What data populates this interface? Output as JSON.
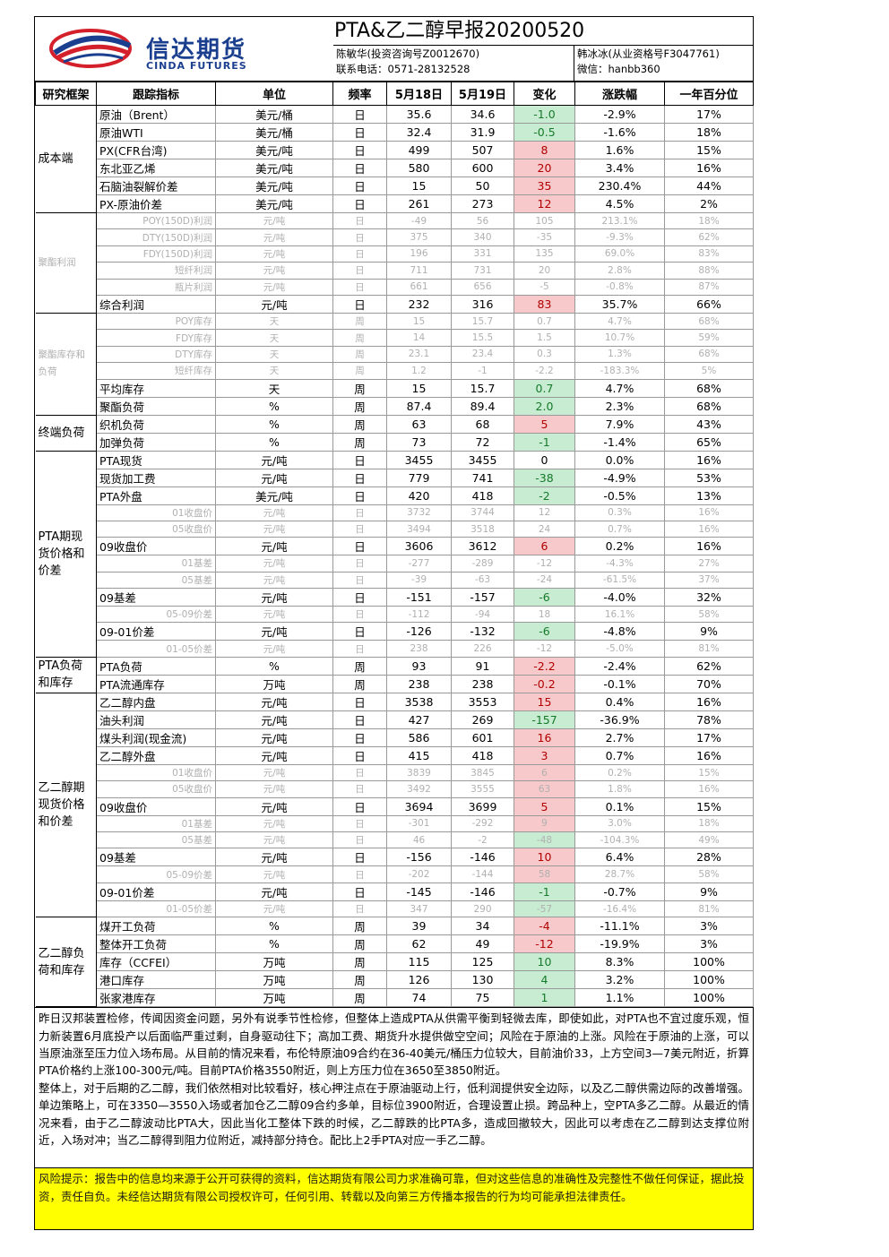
{
  "header": {
    "logo_cn": "信达期货",
    "logo_en": "CINDA FUTURES",
    "title": "PTA&乙二醇早报20200520",
    "analyst1": "陈敏华(投资咨询号Z0012670)",
    "contact": "联系电话：0571-28132528",
    "analyst2": "韩冰冰(从业资格号F3047761)",
    "wechat": "微信：hanbb360"
  },
  "columns": [
    "研究框架",
    "跟踪指标",
    "单位",
    "频率",
    "5月18日",
    "5月19日",
    "变化",
    "涨跌幅",
    "一年百分位"
  ],
  "groups": [
    {
      "label": "成本端",
      "rows": [
        {
          "name": "原油（Brent）",
          "unit": "美元/桶",
          "freq": "日",
          "v1": "35.6",
          "v2": "34.6",
          "chg": "-1.0",
          "dir": "dn",
          "pct": "-2.9%",
          "pctl": "17%",
          "dim": false
        },
        {
          "name": "原油WTI",
          "unit": "美元/桶",
          "freq": "日",
          "v1": "32.4",
          "v2": "31.9",
          "chg": "-0.5",
          "dir": "dn",
          "pct": "-1.6%",
          "pctl": "18%",
          "dim": false
        },
        {
          "name": "PX(CFR台湾)",
          "unit": "美元/吨",
          "freq": "日",
          "v1": "499",
          "v2": "507",
          "chg": "8",
          "dir": "up",
          "pct": "1.6%",
          "pctl": "15%",
          "dim": false
        },
        {
          "name": "东北亚乙烯",
          "unit": "美元/吨",
          "freq": "日",
          "v1": "580",
          "v2": "600",
          "chg": "20",
          "dir": "up",
          "pct": "3.4%",
          "pctl": "16%",
          "dim": false
        },
        {
          "name": "石脑油裂解价差",
          "unit": "美元/吨",
          "freq": "日",
          "v1": "15",
          "v2": "50",
          "chg": "35",
          "dir": "up",
          "pct": "230.4%",
          "pctl": "44%",
          "dim": false
        },
        {
          "name": "PX-原油价差",
          "unit": "美元/吨",
          "freq": "日",
          "v1": "261",
          "v2": "273",
          "chg": "12",
          "dir": "up",
          "pct": "4.5%",
          "pctl": "2%",
          "dim": false
        }
      ]
    },
    {
      "label": "聚酯利润",
      "rows": [
        {
          "name": "POY(150D)利润",
          "unit": "元/吨",
          "freq": "日",
          "v1": "-49",
          "v2": "56",
          "chg": "105",
          "dir": "nc",
          "pct": "213.1%",
          "pctl": "18%",
          "dim": true
        },
        {
          "name": "DTY(150D)利润",
          "unit": "元/吨",
          "freq": "日",
          "v1": "375",
          "v2": "340",
          "chg": "-35",
          "dir": "nc",
          "pct": "-9.3%",
          "pctl": "62%",
          "dim": true
        },
        {
          "name": "FDY(150D)利润",
          "unit": "元/吨",
          "freq": "日",
          "v1": "196",
          "v2": "331",
          "chg": "135",
          "dir": "nc",
          "pct": "69.0%",
          "pctl": "83%",
          "dim": true
        },
        {
          "name": "短纤利润",
          "unit": "元/吨",
          "freq": "日",
          "v1": "711",
          "v2": "731",
          "chg": "20",
          "dir": "nc",
          "pct": "2.8%",
          "pctl": "88%",
          "dim": true
        },
        {
          "name": "瓶片利润",
          "unit": "元/吨",
          "freq": "日",
          "v1": "661",
          "v2": "656",
          "chg": "-5",
          "dir": "nc",
          "pct": "-0.8%",
          "pctl": "87%",
          "dim": true
        },
        {
          "name": "综合利润",
          "unit": "元/吨",
          "freq": "日",
          "v1": "232",
          "v2": "316",
          "chg": "83",
          "dir": "up",
          "pct": "35.7%",
          "pctl": "66%",
          "dim": false
        }
      ]
    },
    {
      "label": "聚酯库存和负荷",
      "rows": [
        {
          "name": "POY库存",
          "unit": "天",
          "freq": "周",
          "v1": "15",
          "v2": "15.7",
          "chg": "0.7",
          "dir": "nc",
          "pct": "4.7%",
          "pctl": "68%",
          "dim": true
        },
        {
          "name": "FDY库存",
          "unit": "天",
          "freq": "周",
          "v1": "14",
          "v2": "15.5",
          "chg": "1.5",
          "dir": "nc",
          "pct": "10.7%",
          "pctl": "59%",
          "dim": true
        },
        {
          "name": "DTY库存",
          "unit": "天",
          "freq": "周",
          "v1": "23.1",
          "v2": "23.4",
          "chg": "0.3",
          "dir": "nc",
          "pct": "1.3%",
          "pctl": "68%",
          "dim": true
        },
        {
          "name": "短纤库存",
          "unit": "天",
          "freq": "周",
          "v1": "1.2",
          "v2": "-1",
          "chg": "-2.2",
          "dir": "nc",
          "pct": "-183.3%",
          "pctl": "5%",
          "dim": true
        },
        {
          "name": "平均库存",
          "unit": "天",
          "freq": "周",
          "v1": "15",
          "v2": "15.7",
          "chg": "0.7",
          "dir": "dn",
          "pct": "4.7%",
          "pctl": "68%",
          "dim": false
        },
        {
          "name": "聚酯负荷",
          "unit": "%",
          "freq": "周",
          "v1": "87.4",
          "v2": "89.4",
          "chg": "2.0",
          "dir": "dn",
          "pct": "2.3%",
          "pctl": "68%",
          "dim": false
        }
      ]
    },
    {
      "label": "终端负荷",
      "rows": [
        {
          "name": "织机负荷",
          "unit": "%",
          "freq": "周",
          "v1": "63",
          "v2": "68",
          "chg": "5",
          "dir": "up",
          "pct": "7.9%",
          "pctl": "43%",
          "dim": false
        },
        {
          "name": "加弹负荷",
          "unit": "%",
          "freq": "周",
          "v1": "73",
          "v2": "72",
          "chg": "-1",
          "dir": "dn",
          "pct": "-1.4%",
          "pctl": "65%",
          "dim": false
        }
      ]
    },
    {
      "label": "PTA期现货价格和价差",
      "rows": [
        {
          "name": "PTA现货",
          "unit": "元/吨",
          "freq": "日",
          "v1": "3455",
          "v2": "3455",
          "chg": "0",
          "dir": "nc",
          "pct": "0.0%",
          "pctl": "16%",
          "dim": false
        },
        {
          "name": "现货加工费",
          "unit": "元/吨",
          "freq": "日",
          "v1": "779",
          "v2": "741",
          "chg": "-38",
          "dir": "dn",
          "pct": "-4.9%",
          "pctl": "53%",
          "dim": false
        },
        {
          "name": "PTA外盘",
          "unit": "美元/吨",
          "freq": "日",
          "v1": "420",
          "v2": "418",
          "chg": "-2",
          "dir": "dn",
          "pct": "-0.5%",
          "pctl": "13%",
          "dim": false
        },
        {
          "name": "01收盘价",
          "unit": "元/吨",
          "freq": "日",
          "v1": "3732",
          "v2": "3744",
          "chg": "12",
          "dir": "nc",
          "pct": "0.3%",
          "pctl": "16%",
          "dim": true
        },
        {
          "name": "05收盘价",
          "unit": "元/吨",
          "freq": "日",
          "v1": "3494",
          "v2": "3518",
          "chg": "24",
          "dir": "nc",
          "pct": "0.7%",
          "pctl": "16%",
          "dim": true
        },
        {
          "name": "09收盘价",
          "unit": "元/吨",
          "freq": "日",
          "v1": "3606",
          "v2": "3612",
          "chg": "6",
          "dir": "up",
          "pct": "0.2%",
          "pctl": "16%",
          "dim": false
        },
        {
          "name": "01基差",
          "unit": "元/吨",
          "freq": "日",
          "v1": "-277",
          "v2": "-289",
          "chg": "-12",
          "dir": "nc",
          "pct": "-4.3%",
          "pctl": "27%",
          "dim": true
        },
        {
          "name": "05基差",
          "unit": "元/吨",
          "freq": "日",
          "v1": "-39",
          "v2": "-63",
          "chg": "-24",
          "dir": "nc",
          "pct": "-61.5%",
          "pctl": "37%",
          "dim": true
        },
        {
          "name": "09基差",
          "unit": "元/吨",
          "freq": "日",
          "v1": "-151",
          "v2": "-157",
          "chg": "-6",
          "dir": "dn",
          "pct": "-4.0%",
          "pctl": "32%",
          "dim": false
        },
        {
          "name": "05-09价差",
          "unit": "元/吨",
          "freq": "日",
          "v1": "-112",
          "v2": "-94",
          "chg": "18",
          "dir": "nc",
          "pct": "16.1%",
          "pctl": "58%",
          "dim": true
        },
        {
          "name": "09-01价差",
          "unit": "元/吨",
          "freq": "日",
          "v1": "-126",
          "v2": "-132",
          "chg": "-6",
          "dir": "dn",
          "pct": "-4.8%",
          "pctl": "9%",
          "dim": false
        },
        {
          "name": "01-05价差",
          "unit": "元/吨",
          "freq": "日",
          "v1": "238",
          "v2": "226",
          "chg": "-12",
          "dir": "nc",
          "pct": "-5.0%",
          "pctl": "81%",
          "dim": true
        }
      ]
    },
    {
      "label": "PTA负荷和库存",
      "rows": [
        {
          "name": "PTA负荷",
          "unit": "%",
          "freq": "周",
          "v1": "93",
          "v2": "91",
          "chg": "-2.2",
          "dir": "up",
          "pct": "-2.4%",
          "pctl": "62%",
          "dim": false
        },
        {
          "name": "PTA流通库存",
          "unit": "万吨",
          "freq": "周",
          "v1": "238",
          "v2": "238",
          "chg": "-0.2",
          "dir": "up",
          "pct": "-0.1%",
          "pctl": "70%",
          "dim": false
        }
      ]
    },
    {
      "label": "乙二醇期现货价格和价差",
      "rows": [
        {
          "name": "乙二醇内盘",
          "unit": "元/吨",
          "freq": "日",
          "v1": "3538",
          "v2": "3553",
          "chg": "15",
          "dir": "up",
          "pct": "0.4%",
          "pctl": "16%",
          "dim": false
        },
        {
          "name": "油头利润",
          "unit": "元/吨",
          "freq": "日",
          "v1": "427",
          "v2": "269",
          "chg": "-157",
          "dir": "dn",
          "pct": "-36.9%",
          "pctl": "78%",
          "dim": false
        },
        {
          "name": "煤头利润(现金流)",
          "unit": "元/吨",
          "freq": "日",
          "v1": "586",
          "v2": "601",
          "chg": "16",
          "dir": "up",
          "pct": "2.7%",
          "pctl": "17%",
          "dim": false
        },
        {
          "name": "乙二醇外盘",
          "unit": "元/吨",
          "freq": "日",
          "v1": "415",
          "v2": "418",
          "chg": "3",
          "dir": "up",
          "pct": "0.7%",
          "pctl": "16%",
          "dim": false
        },
        {
          "name": "01收盘价",
          "unit": "元/吨",
          "freq": "日",
          "v1": "3839",
          "v2": "3845",
          "chg": "6",
          "dir": "up",
          "pct": "0.2%",
          "pctl": "15%",
          "dim": true
        },
        {
          "name": "05收盘价",
          "unit": "元/吨",
          "freq": "日",
          "v1": "3492",
          "v2": "3555",
          "chg": "63",
          "dir": "up",
          "pct": "1.8%",
          "pctl": "16%",
          "dim": true
        },
        {
          "name": "09收盘价",
          "unit": "元/吨",
          "freq": "日",
          "v1": "3694",
          "v2": "3699",
          "chg": "5",
          "dir": "up",
          "pct": "0.1%",
          "pctl": "15%",
          "dim": false
        },
        {
          "name": "01基差",
          "unit": "元/吨",
          "freq": "日",
          "v1": "-301",
          "v2": "-292",
          "chg": "9",
          "dir": "up",
          "pct": "3.0%",
          "pctl": "18%",
          "dim": true
        },
        {
          "name": "05基差",
          "unit": "元/吨",
          "freq": "日",
          "v1": "46",
          "v2": "-2",
          "chg": "-48",
          "dir": "dn",
          "pct": "-104.3%",
          "pctl": "49%",
          "dim": true
        },
        {
          "name": "09基差",
          "unit": "元/吨",
          "freq": "日",
          "v1": "-156",
          "v2": "-146",
          "chg": "10",
          "dir": "up",
          "pct": "6.4%",
          "pctl": "28%",
          "dim": false
        },
        {
          "name": "05-09价差",
          "unit": "元/吨",
          "freq": "日",
          "v1": "-202",
          "v2": "-144",
          "chg": "58",
          "dir": "up",
          "pct": "28.7%",
          "pctl": "58%",
          "dim": true
        },
        {
          "name": "09-01价差",
          "unit": "元/吨",
          "freq": "日",
          "v1": "-145",
          "v2": "-146",
          "chg": "-1",
          "dir": "dn",
          "pct": "-0.7%",
          "pctl": "9%",
          "dim": false
        },
        {
          "name": "01-05价差",
          "unit": "元/吨",
          "freq": "日",
          "v1": "347",
          "v2": "290",
          "chg": "-57",
          "dir": "dn",
          "pct": "-16.4%",
          "pctl": "81%",
          "dim": true
        }
      ]
    },
    {
      "label": "乙二醇负荷和库存",
      "rows": [
        {
          "name": "煤开工负荷",
          "unit": "%",
          "freq": "周",
          "v1": "39",
          "v2": "34",
          "chg": "-4",
          "dir": "up",
          "pct": "-11.1%",
          "pctl": "3%",
          "dim": false
        },
        {
          "name": "整体开工负荷",
          "unit": "%",
          "freq": "周",
          "v1": "62",
          "v2": "49",
          "chg": "-12",
          "dir": "up",
          "pct": "-19.9%",
          "pctl": "3%",
          "dim": false
        },
        {
          "name": "库存（CCFEI）",
          "unit": "万吨",
          "freq": "周",
          "v1": "115",
          "v2": "125",
          "chg": "10",
          "dir": "dn",
          "pct": "8.3%",
          "pctl": "100%",
          "dim": false
        },
        {
          "name": "港口库存",
          "unit": "万吨",
          "freq": "周",
          "v1": "126",
          "v2": "130",
          "chg": "4",
          "dir": "dn",
          "pct": "3.2%",
          "pctl": "100%",
          "dim": false
        },
        {
          "name": "张家港库存",
          "unit": "万吨",
          "freq": "周",
          "v1": "74",
          "v2": "75",
          "chg": "1",
          "dir": "dn",
          "pct": "1.1%",
          "pctl": "100%",
          "dim": false
        }
      ]
    }
  ],
  "commentary": {
    "p1": "昨日汉邦装置检修，传闻因资金问题，另外有说季节性检修，但整体上造成PTA从供需平衡到轻微去库，即使如此，对PTA也不宜过度乐观，恒力新装置6月底投产以后面临严重过剩，自身驱动往下；高加工费、期货升水提供做空空间；风险在于原油的上涨。风险在于原油的上涨，可以当原油涨至压力位入场布局。从目前的情况来看，布伦特原油09合约在36-40美元/桶压力位较大，目前油价33，上方空间3—7美元附近，折算PTA价格约上涨100-300元/吨。目前PTA价格3550附近，则上方压力位在3650至3850附近。",
    "p2": "整体上，对于后期的乙二醇，我们依然相对比较看好，核心押注点在于原油驱动上行，低利润提供安全边际，以及乙二醇供需边际的改善增强。单边策略上，可在3350—3550入场或者加仓乙二醇09合约多单，目标位3900附近，合理设置止损。跨品种上，空PTA多乙二醇。从最近的情况来看，由于乙二醇波动比PTA大，因此当化工整体下跌的时候，乙二醇跌的比PTA多，造成回撤较大，因此可以考虑在乙二醇到达支撑位附近，入场对冲；当乙二醇得到阻力位附近，减持部分持仓。配比上2手PTA对应一手乙二醇。"
  },
  "risk_notice": "风险提示：报告中的信息均来源于公开可获得的资料，信达期货有限公司力求准确可靠，但对这些信息的准确性及完整性不做任何保证，据此投资，责任自负。未经信达期货有限公司授权许可，任何引用、转载以及向第三方传播本报告的行为均可能承担法律责任。",
  "colors": {
    "up_bg": "#f7c9cb",
    "up_text": "#b00000",
    "down_bg": "#c8ecd2",
    "down_text": "#167a2a",
    "risk_bg": "#ffff00",
    "brand": "#1b3f8f",
    "logo_red": "#d4202a"
  }
}
